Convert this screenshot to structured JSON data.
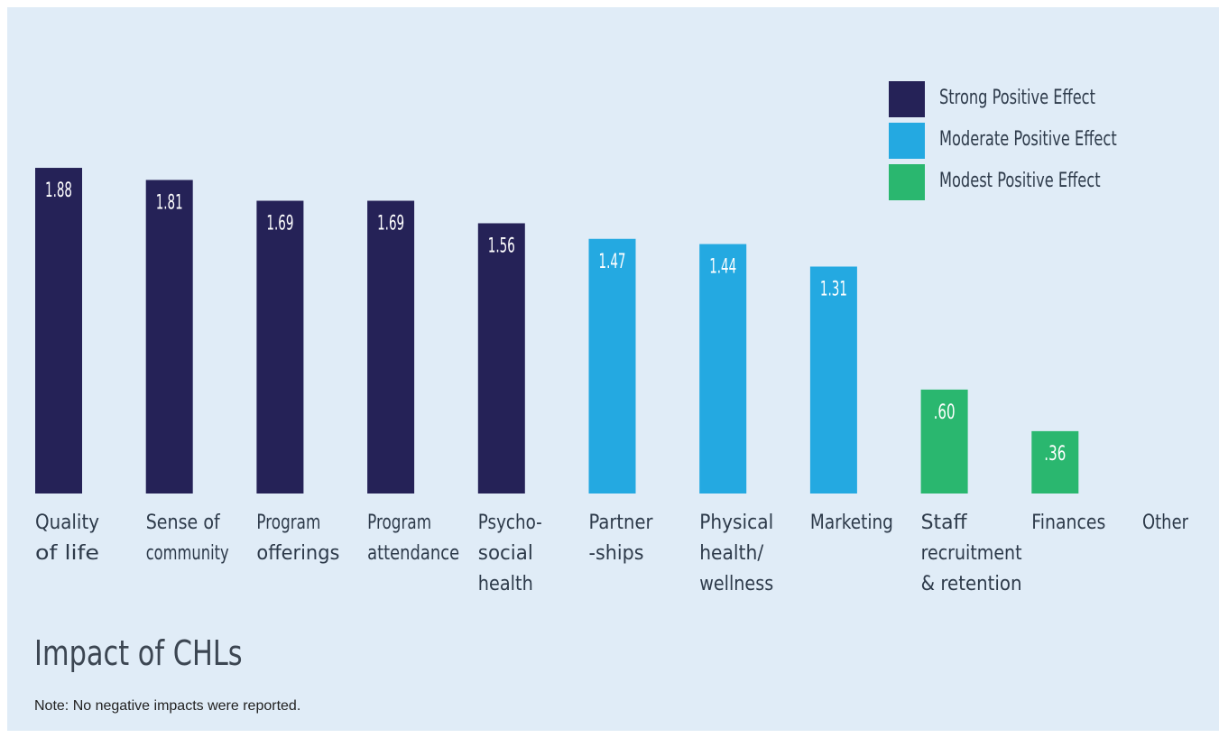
{
  "chart_data": {
    "type": "bar",
    "title": "Impact of CHLs",
    "note": "Note: No negative impacts were reported.",
    "categories": [
      [
        "Quality",
        "of life"
      ],
      [
        "Sense of",
        "community"
      ],
      [
        "Program",
        "offerings"
      ],
      [
        "Program",
        "attendance"
      ],
      [
        "Psycho-",
        "social",
        "health"
      ],
      [
        "Partner",
        "-ships"
      ],
      [
        "Physical",
        "health/",
        "wellness"
      ],
      [
        "Marketing"
      ],
      [
        "Staff",
        "recruitment",
        "& retention"
      ],
      [
        "Finances"
      ],
      [
        "Other"
      ]
    ],
    "values": [
      1.88,
      1.81,
      1.69,
      1.69,
      1.56,
      1.47,
      1.44,
      1.31,
      0.6,
      0.36,
      null
    ],
    "value_labels": [
      "1.88",
      "1.81",
      "1.69",
      "1.69",
      "1.56",
      "1.47",
      "1.44",
      "1.31",
      ".60",
      ".36",
      ""
    ],
    "groups": [
      "strong",
      "strong",
      "strong",
      "strong",
      "strong",
      "moderate",
      "moderate",
      "moderate",
      "modest",
      "modest",
      null
    ],
    "legend": [
      {
        "key": "strong",
        "label": "Strong Positive Effect",
        "color": "#252257"
      },
      {
        "key": "moderate",
        "label": "Moderate Positive Effect",
        "color": "#24a9e1"
      },
      {
        "key": "modest",
        "label": "Modest Positive Effect",
        "color": "#2ab76f"
      }
    ],
    "legend_placement": "top-right",
    "grid": false,
    "ylim": [
      0,
      1.9
    ]
  }
}
